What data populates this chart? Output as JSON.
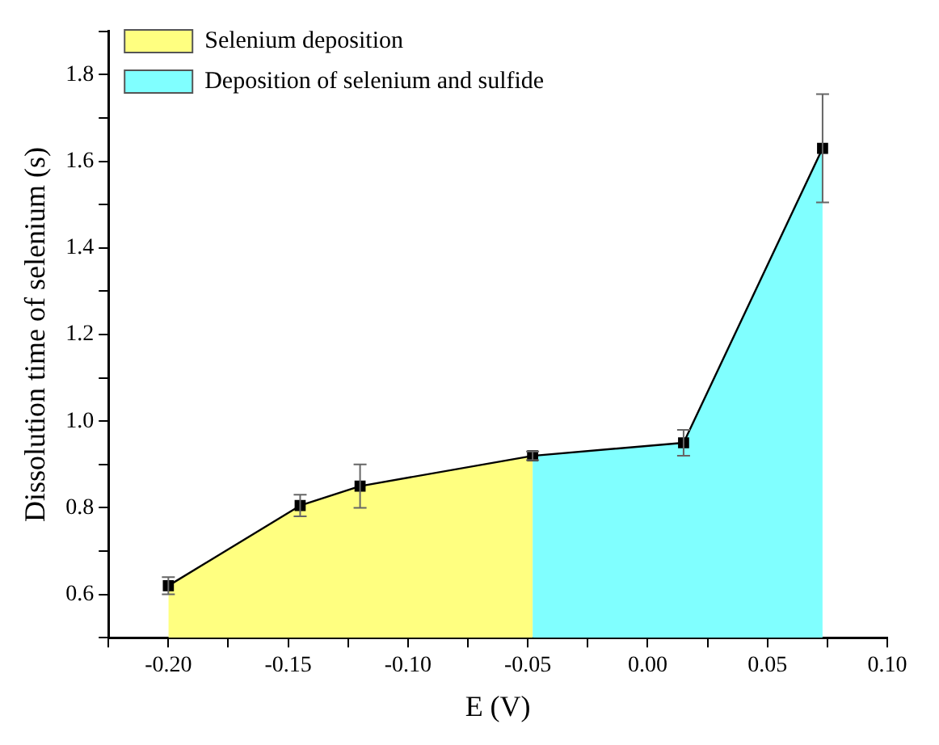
{
  "chart_data": {
    "type": "line",
    "xlabel": "E (V)",
    "ylabel": "Dissolution time of selenium (s)",
    "xlim": [
      -0.225,
      0.1
    ],
    "xticks": [
      {
        "value": -0.225,
        "label": null
      },
      {
        "value": -0.2,
        "label": "-0.20"
      },
      {
        "value": -0.175,
        "label": null
      },
      {
        "value": -0.15,
        "label": "-0.15"
      },
      {
        "value": -0.125,
        "label": null
      },
      {
        "value": -0.1,
        "label": "-0.10"
      },
      {
        "value": -0.075,
        "label": null
      },
      {
        "value": -0.05,
        "label": "-0.05"
      },
      {
        "value": -0.025,
        "label": null
      },
      {
        "value": 0.0,
        "label": "0.00"
      },
      {
        "value": 0.025,
        "label": null
      },
      {
        "value": 0.05,
        "label": "0.05"
      },
      {
        "value": 0.075,
        "label": null
      },
      {
        "value": 0.1,
        "label": "0.10"
      }
    ],
    "ylim": [
      0.5,
      1.9
    ],
    "yticks": [
      {
        "value": 0.5,
        "label": null
      },
      0.6,
      {
        "value": 0.7,
        "label": null
      },
      0.8,
      {
        "value": 0.9,
        "label": null
      },
      {
        "value": 1.0,
        "label": "1.0"
      },
      {
        "value": 1.1,
        "label": null
      },
      1.2,
      {
        "value": 1.3,
        "label": null
      },
      1.4,
      {
        "value": 1.5,
        "label": null
      },
      1.6,
      {
        "value": 1.7,
        "label": null
      },
      1.8,
      {
        "value": 1.9,
        "label": null
      }
    ],
    "series": [
      {
        "type": "area",
        "name": "Selenium deposition",
        "color": "#ffff80",
        "x": [
          -0.2,
          -0.145,
          -0.12,
          -0.048
        ],
        "values": [
          0.62,
          0.805,
          0.85,
          0.92
        ]
      },
      {
        "type": "area",
        "name": "Deposition of selenium and sulfide",
        "color": "#80ffff",
        "x": [
          -0.048,
          0.015,
          0.073
        ],
        "values": [
          0.92,
          0.95,
          1.63
        ]
      },
      {
        "type": "line",
        "color": "#000000",
        "marker": "square",
        "x": [
          -0.2,
          -0.145,
          -0.12,
          -0.048,
          0.015,
          0.073
        ],
        "values": [
          0.62,
          0.805,
          0.85,
          0.92,
          0.95,
          1.63
        ],
        "errors": [
          0.02,
          0.025,
          0.05,
          0.01,
          0.03,
          0.125
        ]
      }
    ],
    "grid": false,
    "legend": "top left"
  }
}
